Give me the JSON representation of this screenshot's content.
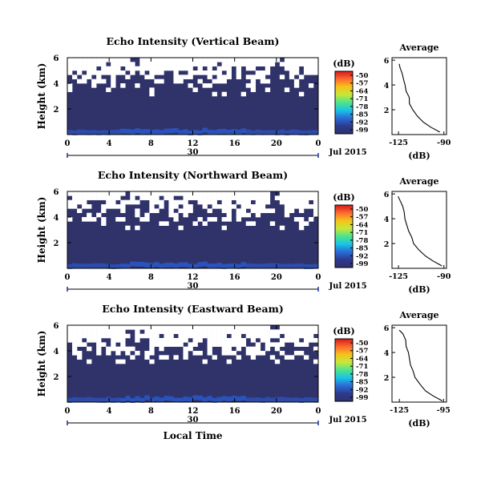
{
  "chart_data": [
    {
      "type": "heatmap",
      "title": "Echo Intensity (Vertical Beam)",
      "ylabel": "Height (km)",
      "y_ticks": [
        "6",
        "4",
        "2"
      ],
      "x_ticks": [
        "0",
        "4",
        "8",
        "12",
        "16",
        "20",
        "0"
      ],
      "date_label": "30",
      "month_label": "Jul 2015",
      "colorbar": {
        "unit": "(dB)",
        "ticks": [
          "-50",
          "-57",
          "-64",
          "-71",
          "-78",
          "-85",
          "-92",
          "-99"
        ]
      },
      "profile": {
        "title": "Average",
        "xlabel": "(dB)",
        "x_ticks": [
          "-125",
          "-90"
        ],
        "y_ticks": [
          "6",
          "4",
          "2"
        ],
        "points": [
          [
            -93,
            0.2
          ],
          [
            -100,
            0.6
          ],
          [
            -106,
            1.0
          ],
          [
            -110,
            1.5
          ],
          [
            -114,
            2.0
          ],
          [
            -116,
            2.5
          ],
          [
            -117,
            3.0
          ],
          [
            -119,
            3.5
          ],
          [
            -120,
            4.0
          ],
          [
            -121,
            4.4
          ],
          [
            -122,
            4.9
          ],
          [
            -124,
            5.4
          ],
          [
            -125,
            5.7
          ]
        ]
      }
    },
    {
      "type": "heatmap",
      "title": "Echo Intensity (Northward Beam)",
      "ylabel": "Height (km)",
      "y_ticks": [
        "6",
        "4",
        "2"
      ],
      "x_ticks": [
        "0",
        "4",
        "8",
        "12",
        "16",
        "20",
        "0"
      ],
      "date_label": "30",
      "month_label": "Jul 2015",
      "colorbar": {
        "unit": "(dB)",
        "ticks": [
          "-50",
          "-57",
          "-64",
          "-71",
          "-78",
          "-85",
          "-92",
          "-99"
        ]
      },
      "profile": {
        "title": "Average",
        "xlabel": "(dB)",
        "x_ticks": [
          "-125",
          "-90"
        ],
        "y_ticks": [
          "6",
          "4",
          "2"
        ],
        "points": [
          [
            -91,
            0.2
          ],
          [
            -98,
            0.6
          ],
          [
            -104,
            1.0
          ],
          [
            -109,
            1.5
          ],
          [
            -113,
            2.0
          ],
          [
            -115,
            2.5
          ],
          [
            -117,
            3.0
          ],
          [
            -119,
            3.5
          ],
          [
            -120,
            4.0
          ],
          [
            -121,
            4.5
          ],
          [
            -122,
            5.0
          ],
          [
            -124,
            5.5
          ],
          [
            -125,
            5.8
          ]
        ]
      }
    },
    {
      "type": "heatmap",
      "title": "Echo Intensity (Eastward Beam)",
      "ylabel": "Height (km)",
      "y_ticks": [
        "6",
        "4",
        "2"
      ],
      "x_ticks": [
        "0",
        "4",
        "8",
        "12",
        "16",
        "20",
        "0"
      ],
      "date_label": "30",
      "month_label": "Jul 2015",
      "xlabel": "Local Time",
      "colorbar": {
        "unit": "(dB)",
        "ticks": [
          "-50",
          "-57",
          "-64",
          "-71",
          "-78",
          "-85",
          "-92",
          "-99"
        ]
      },
      "profile": {
        "title": "Average",
        "xlabel": "(dB)",
        "x_ticks": [
          "-125",
          "-95"
        ],
        "y_ticks": [
          "6",
          "4",
          "2"
        ],
        "points": [
          [
            -96,
            0.1
          ],
          [
            -102,
            0.5
          ],
          [
            -107,
            0.9
          ],
          [
            -111,
            1.4
          ],
          [
            -114,
            2.0
          ],
          [
            -116,
            2.5
          ],
          [
            -117,
            3.0
          ],
          [
            -118,
            3.5
          ],
          [
            -119,
            4.0
          ],
          [
            -120,
            4.5
          ],
          [
            -121,
            5.0
          ],
          [
            -123,
            5.5
          ],
          [
            -125,
            5.8
          ]
        ]
      }
    }
  ],
  "colorbar_colors": [
    "#d7191c",
    "#fd6a2f",
    "#f6c31b",
    "#c6e839",
    "#4fe38c",
    "#18c4e6",
    "#2b6bd6",
    "#2c3a8f",
    "#30326a"
  ],
  "colors": {
    "background": "#30326a",
    "clear": "#ffffff",
    "near_ground_blue": "#2a56c4"
  }
}
